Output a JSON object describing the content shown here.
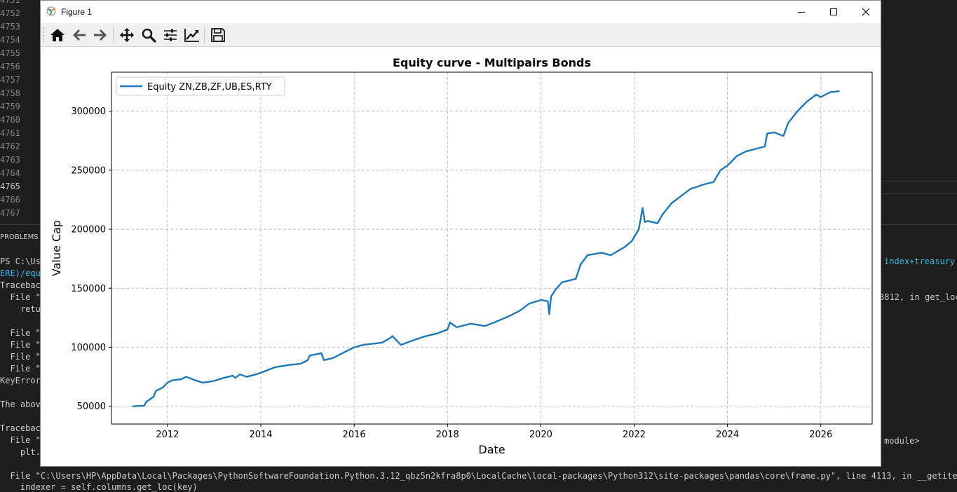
{
  "editor": {
    "line_numbers": [
      "4751",
      "4752",
      "4753",
      "4754",
      "4755",
      "4756",
      "4757",
      "4758",
      "4759",
      "4760",
      "4761",
      "4762",
      "4763",
      "4764",
      "4765",
      "4766",
      "4767"
    ],
    "current_line": "4765"
  },
  "panel": {
    "problems_tab": "PROBLEMS"
  },
  "terminal": {
    "lines_left": [
      "PS C:\\Us",
      "ERE)/equ",
      "Traceback",
      "  File \"",
      "    retu",
      "",
      "  File \"",
      "  File \"",
      "  File \"",
      "  File \"",
      "KeyError",
      "",
      "The above",
      "",
      "Traceback",
      "  File \"",
      "    plt."
    ],
    "right_1": "index+treasury'",
    "right_2": "3812, in get_loc",
    "right_3": "module>",
    "bottom_1": "  File \"C:\\Users\\HP\\AppData\\Local\\Packages\\PythonSoftwareFoundation.Python.3.12_qbz5n2kfra8p0\\LocalCache\\local-packages\\Python312\\site-packages\\pandas\\core\\frame.py\", line 4113, in __getitem__",
    "bottom_2": "    indexer = self.columns.get_loc(key)"
  },
  "window": {
    "title": "Figure 1",
    "controls": [
      "minimize-icon",
      "maximize-icon",
      "close-icon"
    ]
  },
  "toolbar": {
    "buttons": [
      "home-icon",
      "back-arrow-icon",
      "forward-arrow-icon",
      "pan-icon",
      "zoom-icon",
      "subplots-icon",
      "edit-curve-icon",
      "save-icon"
    ]
  },
  "chart_data": {
    "type": "line",
    "title": "Equity curve - Multipairs Bonds",
    "xlabel": "Date",
    "ylabel": "Value Cap",
    "xlim": [
      2010.8,
      2027.1
    ],
    "ylim": [
      35000,
      333000
    ],
    "x_ticks": [
      2012,
      2014,
      2016,
      2018,
      2020,
      2022,
      2024,
      2026
    ],
    "x_tick_labels": [
      "2012",
      "2014",
      "2016",
      "2018",
      "2020",
      "2022",
      "2024",
      "2026"
    ],
    "y_ticks": [
      50000,
      100000,
      150000,
      200000,
      250000,
      300000
    ],
    "y_tick_labels": [
      "50000",
      "100000",
      "150000",
      "200000",
      "250000",
      "300000"
    ],
    "grid": true,
    "legend_position": "top-left",
    "series": [
      {
        "name": "Equity ZN,ZB,ZF,UB,ES,RTY",
        "color": "#1f77b4",
        "x": [
          2011.25,
          2011.5,
          2011.55,
          2011.7,
          2011.75,
          2011.9,
          2012.0,
          2012.1,
          2012.3,
          2012.4,
          2012.6,
          2012.75,
          2012.85,
          2013.0,
          2013.2,
          2013.4,
          2013.45,
          2013.55,
          2013.7,
          2013.9,
          2014.1,
          2014.3,
          2014.6,
          2014.85,
          2015.0,
          2015.05,
          2015.3,
          2015.35,
          2015.55,
          2015.75,
          2016.0,
          2016.2,
          2016.4,
          2016.6,
          2016.78,
          2016.82,
          2017.0,
          2017.2,
          2017.5,
          2017.8,
          2018.0,
          2018.05,
          2018.2,
          2018.5,
          2018.8,
          2019.0,
          2019.3,
          2019.55,
          2019.75,
          2020.0,
          2020.15,
          2020.18,
          2020.22,
          2020.3,
          2020.45,
          2020.75,
          2020.85,
          2021.0,
          2021.3,
          2021.5,
          2021.8,
          2021.95,
          2022.1,
          2022.18,
          2022.23,
          2022.3,
          2022.5,
          2022.6,
          2022.8,
          2023.0,
          2023.2,
          2023.5,
          2023.7,
          2023.85,
          2024.0,
          2024.2,
          2024.4,
          2024.6,
          2024.8,
          2024.85,
          2025.0,
          2025.2,
          2025.3,
          2025.5,
          2025.7,
          2025.9,
          2026.0,
          2026.2,
          2026.4
        ],
        "values": [
          50000,
          50500,
          54000,
          58000,
          63000,
          66000,
          70000,
          72000,
          73000,
          75000,
          72000,
          70000,
          70500,
          71500,
          74000,
          76000,
          74000,
          77000,
          75000,
          77000,
          80000,
          83000,
          85000,
          86000,
          89000,
          93000,
          95000,
          89000,
          91000,
          95000,
          100000,
          102000,
          103000,
          104000,
          108000,
          109500,
          102000,
          105000,
          109000,
          112000,
          115000,
          121000,
          117000,
          120000,
          118000,
          121000,
          126000,
          131000,
          137000,
          140000,
          139000,
          128000,
          143000,
          148000,
          155000,
          158000,
          170000,
          178000,
          180000,
          178000,
          185000,
          190000,
          200000,
          218000,
          206000,
          207000,
          205000,
          212000,
          222000,
          228000,
          234000,
          238000,
          240000,
          250000,
          254000,
          262000,
          266000,
          268000,
          270000,
          281000,
          282000,
          279000,
          290000,
          300000,
          308000,
          314000,
          312000,
          316000,
          317000
        ]
      }
    ]
  }
}
